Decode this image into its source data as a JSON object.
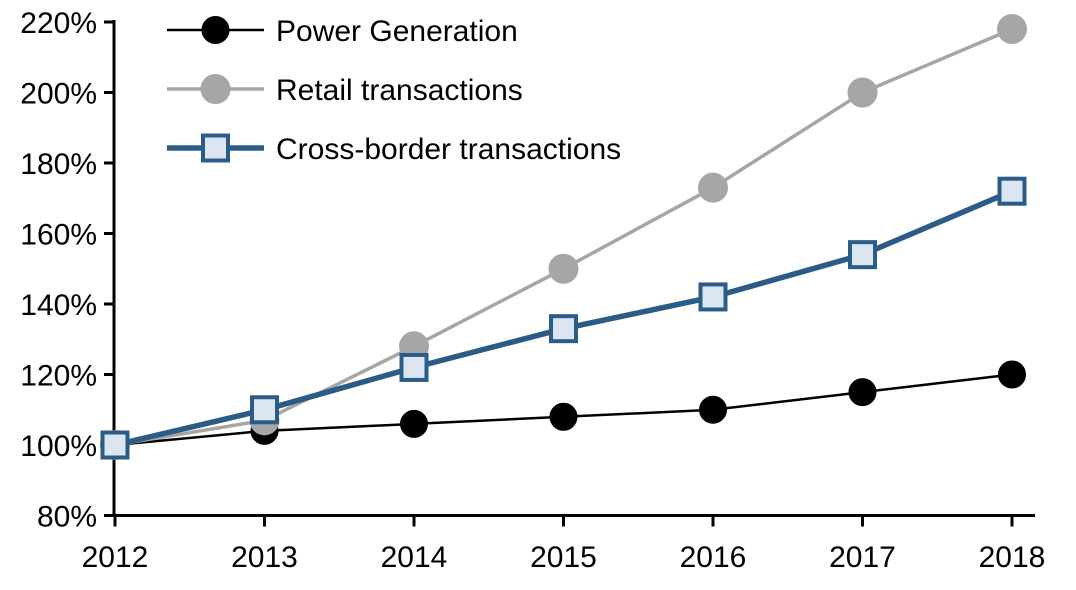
{
  "chart_data": {
    "type": "line",
    "title": "",
    "xlabel": "",
    "ylabel": "",
    "grid": false,
    "legend_position": "top-left",
    "background": "#ffffff",
    "axis_color": "#000000",
    "x": [
      2012,
      2013,
      2014,
      2015,
      2016,
      2017,
      2018
    ],
    "xtick_labels": [
      "2012",
      "2013",
      "2014",
      "2015",
      "2016",
      "2017",
      "2018"
    ],
    "ylim": [
      80,
      220
    ],
    "ytick_step": 20,
    "ytick_labels": [
      "80%",
      "100%",
      "120%",
      "140%",
      "160%",
      "180%",
      "200%",
      "220%"
    ],
    "series": [
      {
        "name": "Power Generation",
        "values": [
          100,
          104,
          106,
          108,
          110,
          115,
          120
        ],
        "color": "#000000",
        "line_width": 2.5,
        "marker": "circle",
        "marker_fill": "#000000",
        "marker_stroke": "#000000",
        "marker_stroke_width": 1,
        "marker_size": 27
      },
      {
        "name": "Retail transactions",
        "values": [
          100,
          107,
          128,
          150,
          173,
          200,
          218
        ],
        "color": "#a6a6a6",
        "line_width": 3.5,
        "marker": "circle",
        "marker_fill": "#a6a6a6",
        "marker_stroke": "#a6a6a6",
        "marker_stroke_width": 1,
        "marker_size": 29
      },
      {
        "name": "Cross-border transactions",
        "values": [
          100,
          110,
          122,
          133,
          142,
          154,
          172
        ],
        "color": "#2b5c87",
        "line_width": 5.5,
        "marker": "square",
        "marker_fill": "#dce6f2",
        "marker_stroke": "#2b5c87",
        "marker_stroke_width": 4,
        "marker_size": 25
      }
    ]
  }
}
